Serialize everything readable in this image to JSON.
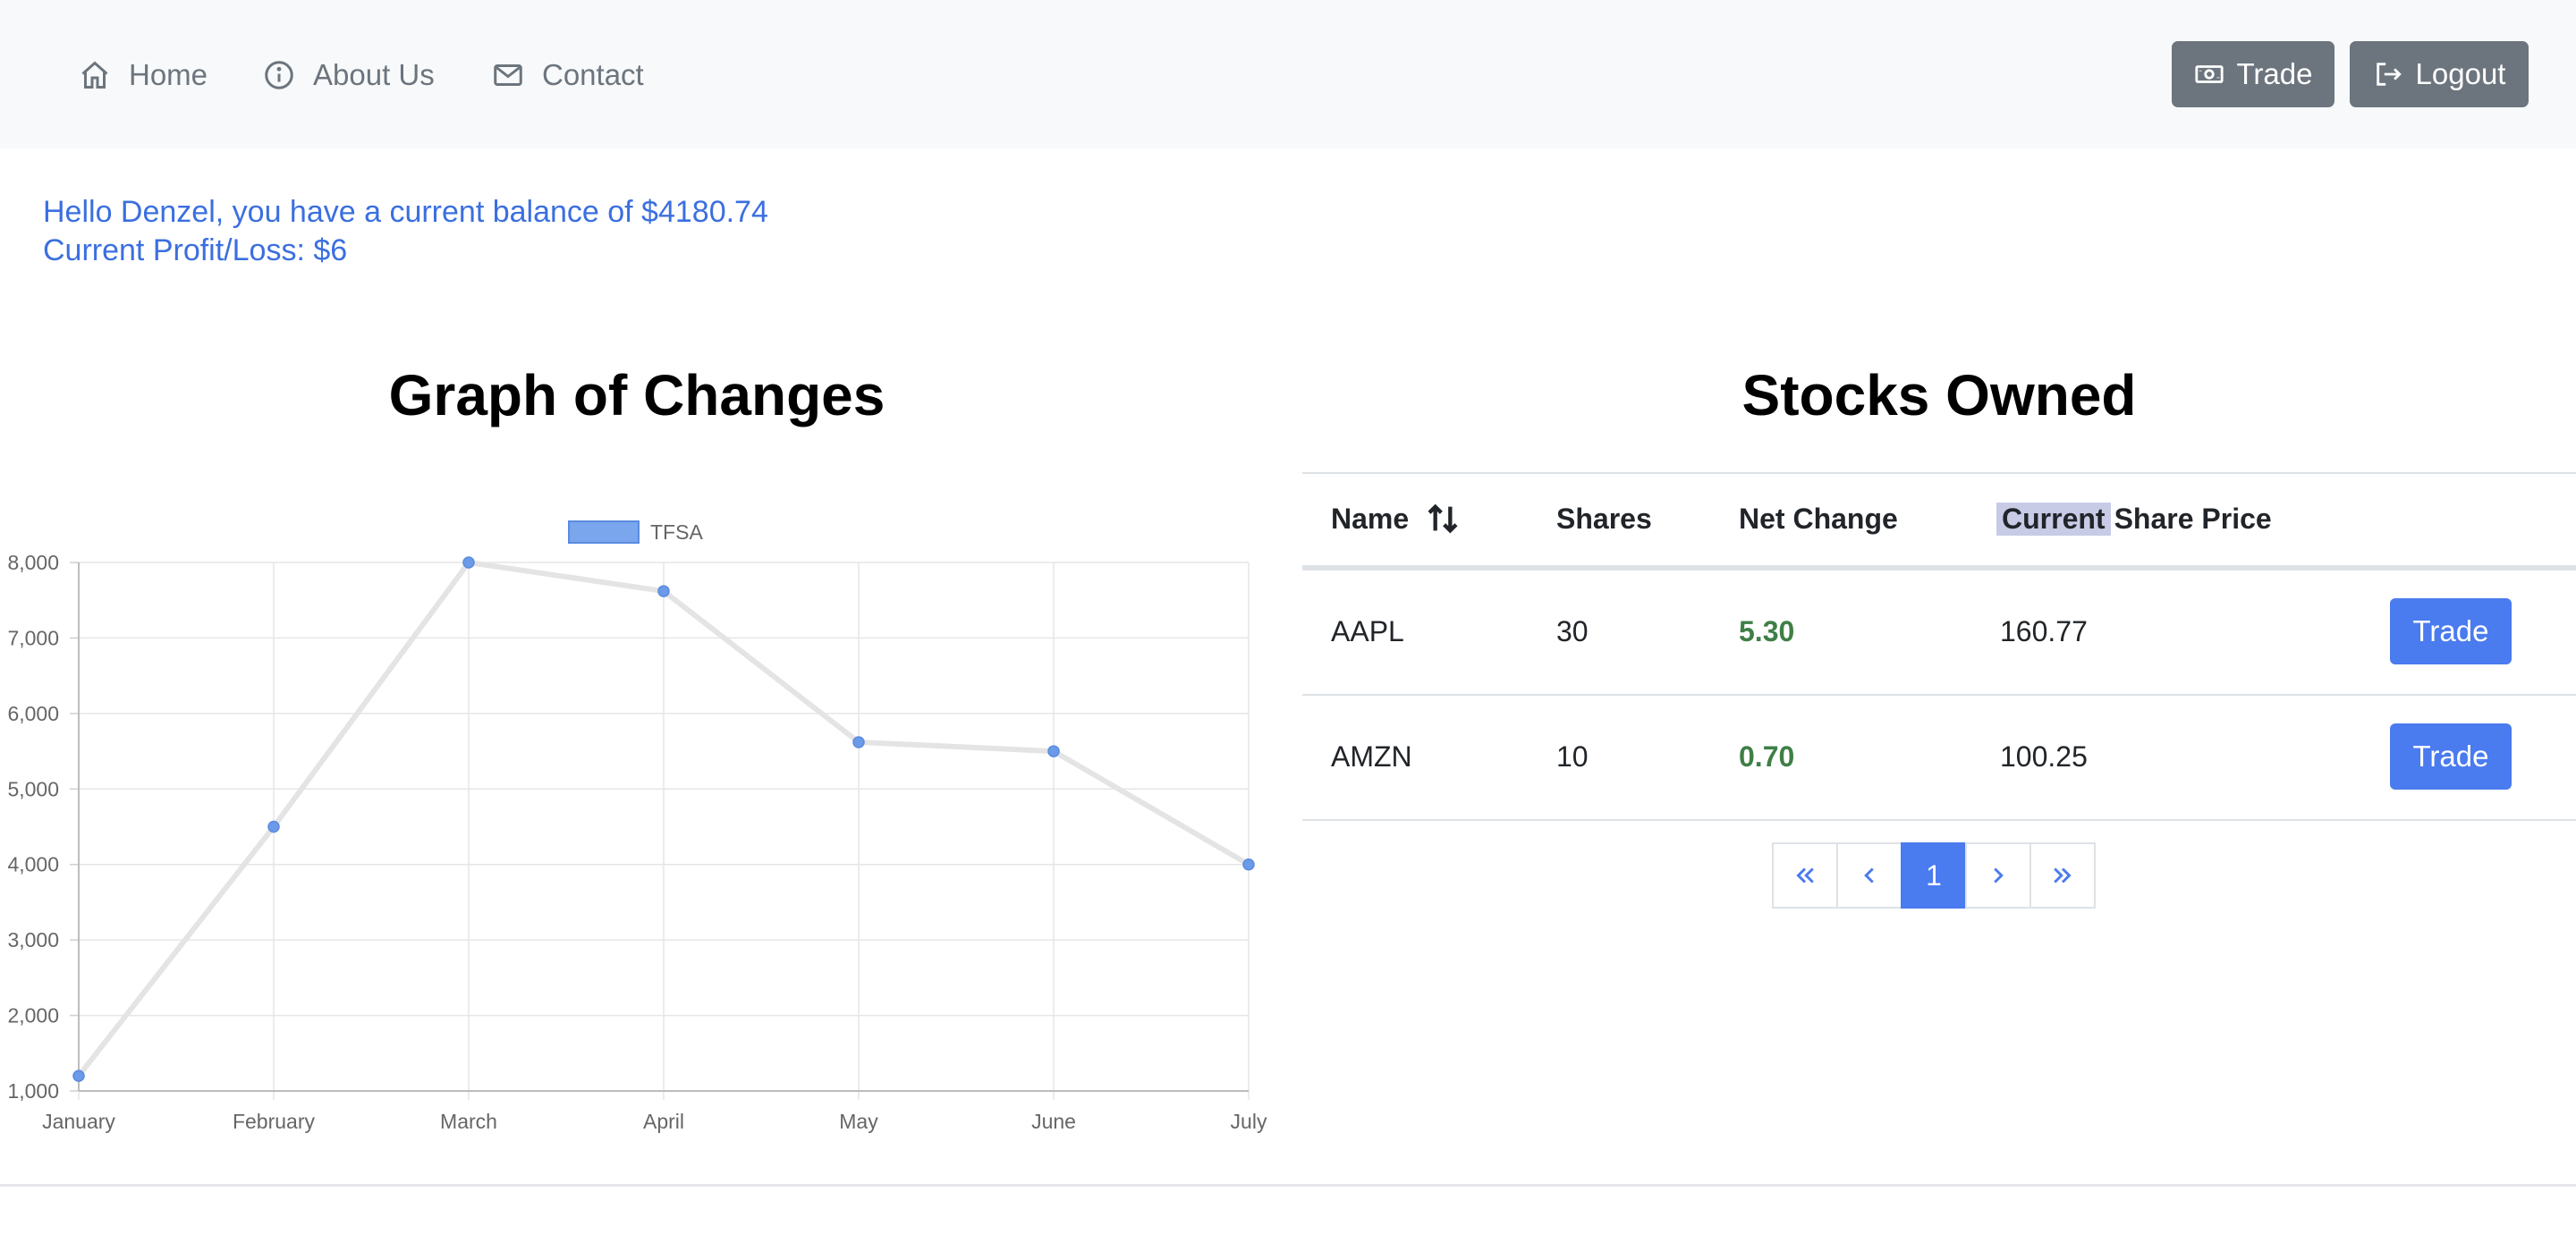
{
  "nav": {
    "home": "Home",
    "about": "About Us",
    "contact": "Contact",
    "trade": "Trade",
    "logout": "Logout"
  },
  "greeting": {
    "balance_line": "Hello Denzel, you have a current balance of $4180.74",
    "profit_line": "Current Profit/Loss: $6"
  },
  "graph_heading": "Graph of Changes",
  "stocks_heading": "Stocks Owned",
  "chart_data": {
    "type": "line",
    "categories": [
      "January",
      "February",
      "March",
      "April",
      "May",
      "June",
      "July"
    ],
    "series": [
      {
        "name": "TFSA",
        "values": [
          1200,
          4500,
          8000,
          7620,
          5620,
          5500,
          4000
        ]
      }
    ],
    "yticks": [
      "1,000",
      "2,000",
      "3,000",
      "4,000",
      "5,000",
      "6,000",
      "7,000",
      "8,000"
    ],
    "ylim": [
      1000,
      8000
    ],
    "grid": true,
    "legend": "top",
    "colors": {
      "line": "#e4e4e4",
      "point": "#6a9ae8",
      "legend_fill": "#79a6ec",
      "legend_border": "#5b8be0"
    }
  },
  "table": {
    "headers": {
      "name": "Name",
      "shares": "Shares",
      "net": "Net Change",
      "price_highlight": "Current",
      "price_rest": "Share Price"
    },
    "rows": [
      {
        "name": "AAPL",
        "shares": "30",
        "net": "5.30",
        "price": "160.77",
        "action": "Trade"
      },
      {
        "name": "AMZN",
        "shares": "10",
        "net": "0.70",
        "price": "100.25",
        "action": "Trade"
      }
    ]
  },
  "pagination": {
    "current": "1"
  },
  "colors": {
    "accent": "#4a7bef",
    "greeting": "#3b6fe0",
    "positive": "#3f7f47",
    "secondary_button": "#6c757d"
  }
}
